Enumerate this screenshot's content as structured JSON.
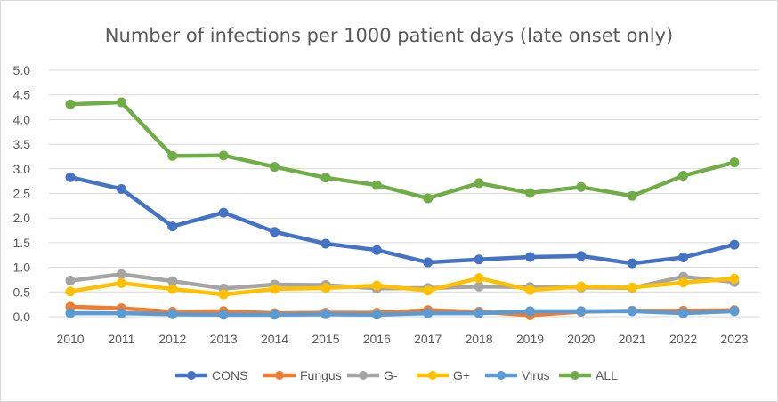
{
  "chart_data": {
    "type": "line",
    "title": "Number of infections per 1000 patient days (late onset only)",
    "xlabel": "",
    "ylabel": "",
    "ylim": [
      0,
      5.0
    ],
    "y_ticks": [
      "0.0",
      "0.5",
      "1.0",
      "1.5",
      "2.0",
      "2.5",
      "3.0",
      "3.5",
      "4.0",
      "4.5",
      "5.0"
    ],
    "grid": true,
    "legend_position": "bottom",
    "categories": [
      "2010",
      "2011",
      "2012",
      "2013",
      "2014",
      "2015",
      "2016",
      "2017",
      "2018",
      "2019",
      "2020",
      "2021",
      "2022",
      "2023"
    ],
    "series": [
      {
        "name": "CONS",
        "color": "#4472c4",
        "values": [
          2.83,
          2.59,
          1.83,
          2.11,
          1.72,
          1.48,
          1.35,
          1.1,
          1.16,
          1.21,
          1.23,
          1.08,
          1.2,
          1.46
        ]
      },
      {
        "name": "Fungus",
        "color": "#ed7d31",
        "values": [
          0.2,
          0.17,
          0.1,
          0.11,
          0.07,
          0.08,
          0.08,
          0.13,
          0.1,
          0.03,
          0.1,
          0.12,
          0.12,
          0.13
        ]
      },
      {
        "name": "G-",
        "color": "#a5a5a5",
        "values": [
          0.73,
          0.86,
          0.72,
          0.57,
          0.65,
          0.64,
          0.57,
          0.58,
          0.61,
          0.6,
          0.59,
          0.58,
          0.81,
          0.7
        ]
      },
      {
        "name": "G+",
        "color": "#ffc000",
        "values": [
          0.51,
          0.68,
          0.56,
          0.45,
          0.56,
          0.58,
          0.63,
          0.53,
          0.78,
          0.54,
          0.61,
          0.59,
          0.69,
          0.77
        ]
      },
      {
        "name": "Virus",
        "color": "#5b9bd5",
        "values": [
          0.07,
          0.07,
          0.05,
          0.04,
          0.04,
          0.05,
          0.04,
          0.07,
          0.07,
          0.11,
          0.11,
          0.11,
          0.07,
          0.11
        ]
      },
      {
        "name": "ALL",
        "color": "#70ad47",
        "values": [
          4.31,
          4.35,
          3.26,
          3.27,
          3.04,
          2.82,
          2.67,
          2.4,
          2.71,
          2.51,
          2.63,
          2.45,
          2.86,
          3.13
        ]
      }
    ]
  }
}
